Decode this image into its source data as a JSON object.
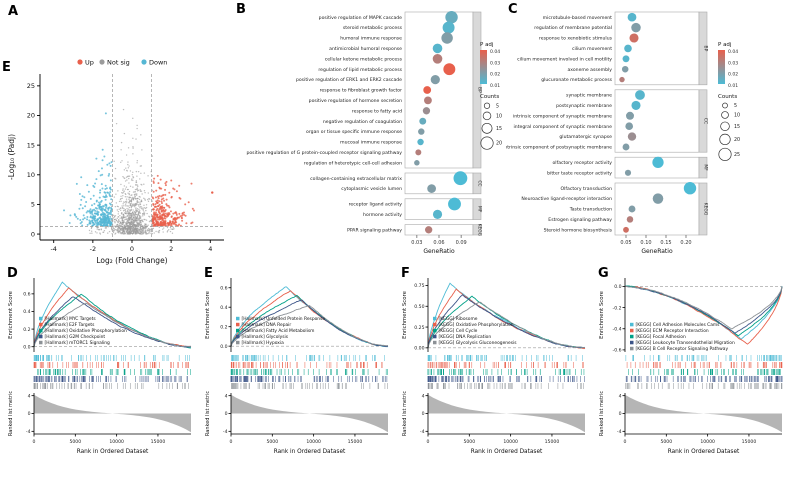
{
  "panel_labels": {
    "a": "A",
    "e_top": "E",
    "b": "B",
    "c": "C",
    "d": "D",
    "e": "E",
    "f": "F",
    "g": "G"
  },
  "palette": {
    "up": "#E8604C",
    "down": "#55B7D4",
    "notsig": "#9B9B9B",
    "padj_high": "#E8604C",
    "padj_low": "#4DBBD5",
    "rank_fill": "#b5b5b5",
    "gsea": [
      "#4DBBD5",
      "#E8604C",
      "#00A087",
      "#3C5488",
      "#8C9196"
    ]
  },
  "chart_data": [
    {
      "id": "volcano",
      "type": "scatter",
      "xlabel": "Log₂ (Fold Change)",
      "ylabel": "-Log₁₀ (Padj)",
      "xticks": [
        -4,
        -2,
        0,
        2,
        4
      ],
      "yticks": [
        0,
        5,
        10,
        15,
        20,
        25
      ],
      "xlim": [
        -4.7,
        4.7
      ],
      "ylim": [
        -1,
        27
      ],
      "threshold_x": [
        -1,
        1
      ],
      "threshold_y": 1.3,
      "legend": [
        {
          "label": "Up",
          "color": "#E8604C"
        },
        {
          "label": "Not sig",
          "color": "#9B9B9B"
        },
        {
          "label": "Down",
          "color": "#55B7D4"
        }
      ]
    },
    {
      "id": "dot-b",
      "type": "dotplot",
      "xlabel": "GeneRatio",
      "xticks": [
        0.03,
        0.06,
        0.09
      ],
      "xlim": [
        0.018,
        0.102
      ],
      "legend": {
        "padj_title": "P adj",
        "padj_ticks": [
          0.04,
          0.03,
          0.02,
          0.01
        ],
        "counts_title": "Counts",
        "counts": [
          5,
          10,
          15,
          20
        ]
      },
      "groups": [
        {
          "name": "BP",
          "terms": [
            {
              "term": "positive regulation of MAPK cascade",
              "ratio": 0.077,
              "count": 20,
              "padj": 0.015
            },
            {
              "term": "steroid metabolic process",
              "ratio": 0.073,
              "count": 19,
              "padj": 0.012
            },
            {
              "term": "humoral immune response",
              "ratio": 0.071,
              "count": 18,
              "padj": 0.02
            },
            {
              "term": "antimicrobial humoral response",
              "ratio": 0.058,
              "count": 14,
              "padj": 0.012
            },
            {
              "term": "cellular ketone metabolic process",
              "ratio": 0.058,
              "count": 14,
              "padj": 0.03
            },
            {
              "term": "regulation of lipid metabolic process",
              "ratio": 0.074,
              "count": 19,
              "padj": 0.04
            },
            {
              "term": "positive regulation of ERK1 and ERK2 cascade",
              "ratio": 0.055,
              "count": 13,
              "padj": 0.02
            },
            {
              "term": "response to fibroblast growth factor",
              "ratio": 0.044,
              "count": 10,
              "padj": 0.04
            },
            {
              "term": "positive regulation of hormone secretion",
              "ratio": 0.045,
              "count": 10,
              "padj": 0.03
            },
            {
              "term": "response to fatty acid",
              "ratio": 0.043,
              "count": 9,
              "padj": 0.025
            },
            {
              "term": "negative regulation of coagulation",
              "ratio": 0.038,
              "count": 8,
              "padj": 0.015
            },
            {
              "term": "organ or tissue specific immune response",
              "ratio": 0.036,
              "count": 7,
              "padj": 0.02
            },
            {
              "term": "mucosal immune response",
              "ratio": 0.035,
              "count": 7,
              "padj": 0.012
            },
            {
              "term": "positive regulation of G protein-coupled receptor signaling pathway",
              "ratio": 0.032,
              "count": 6,
              "padj": 0.03
            },
            {
              "term": "regulation of heterotypic cell-cell adhesion",
              "ratio": 0.03,
              "count": 5,
              "padj": 0.02
            }
          ]
        },
        {
          "name": "CC",
          "terms": [
            {
              "term": "collagen-containing extracellular matrix",
              "ratio": 0.089,
              "count": 23,
              "padj": 0.01
            },
            {
              "term": "cytoplasmic vesicle lumen",
              "ratio": 0.05,
              "count": 12,
              "padj": 0.02
            }
          ]
        },
        {
          "name": "MF",
          "terms": [
            {
              "term": "receptor ligand activity",
              "ratio": 0.081,
              "count": 21,
              "padj": 0.01
            },
            {
              "term": "hormone activity",
              "ratio": 0.058,
              "count": 13,
              "padj": 0.012
            }
          ]
        },
        {
          "name": "KEGG",
          "terms": [
            {
              "term": "PPAR signaling pathway",
              "ratio": 0.046,
              "count": 9,
              "padj": 0.03
            }
          ]
        }
      ]
    },
    {
      "id": "dot-c",
      "type": "dotplot",
      "xlabel": "GeneRatio",
      "xticks": [
        0.05,
        0.1,
        0.15,
        0.2
      ],
      "xlim": [
        0.03,
        0.225
      ],
      "legend": {
        "padj_title": "P adj",
        "padj_ticks": [
          0.04,
          0.03,
          0.02,
          0.01
        ],
        "counts_title": "Counts",
        "counts": [
          5,
          10,
          15,
          20,
          25
        ]
      },
      "groups": [
        {
          "name": "BP",
          "terms": [
            {
              "term": "microtubule-based movement",
              "ratio": 0.065,
              "count": 15,
              "padj": 0.012
            },
            {
              "term": "regulation of membrane potential",
              "ratio": 0.075,
              "count": 17,
              "padj": 0.02
            },
            {
              "term": "response to xenobiotic stimulus",
              "ratio": 0.07,
              "count": 16,
              "padj": 0.035
            },
            {
              "term": "cilium movement",
              "ratio": 0.055,
              "count": 12,
              "padj": 0.012
            },
            {
              "term": "cilium movement involved in cell motility",
              "ratio": 0.05,
              "count": 10,
              "padj": 0.012
            },
            {
              "term": "axoneme assembly",
              "ratio": 0.048,
              "count": 9,
              "padj": 0.02
            },
            {
              "term": "glucuronate metabolic process",
              "ratio": 0.04,
              "count": 6,
              "padj": 0.03
            }
          ]
        },
        {
          "name": "CC",
          "terms": [
            {
              "term": "synaptic membrane",
              "ratio": 0.085,
              "count": 18,
              "padj": 0.012
            },
            {
              "term": "postsynaptic membrane",
              "ratio": 0.075,
              "count": 16,
              "padj": 0.012
            },
            {
              "term": "intrinsic component of synaptic membrane",
              "ratio": 0.06,
              "count": 13,
              "padj": 0.02
            },
            {
              "term": "integral component of synaptic membrane",
              "ratio": 0.058,
              "count": 12,
              "padj": 0.02
            },
            {
              "term": "glutamatergic synapse",
              "ratio": 0.065,
              "count": 14,
              "padj": 0.025
            },
            {
              "term": "intrinsic component of postsynaptic membrane",
              "ratio": 0.05,
              "count": 10,
              "padj": 0.02
            }
          ]
        },
        {
          "name": "MF",
          "terms": [
            {
              "term": "olfactory receptor activity",
              "ratio": 0.13,
              "count": 22,
              "padj": 0.01
            },
            {
              "term": "bitter taste receptor activity",
              "ratio": 0.055,
              "count": 8,
              "padj": 0.02
            }
          ]
        },
        {
          "name": "KEGG",
          "terms": [
            {
              "term": "Olfactory transduction",
              "ratio": 0.21,
              "count": 25,
              "padj": 0.01
            },
            {
              "term": "Neuroactive ligand-receptor interaction",
              "ratio": 0.13,
              "count": 20,
              "padj": 0.02
            },
            {
              "term": "Taste transduction",
              "ratio": 0.065,
              "count": 10,
              "padj": 0.02
            },
            {
              "term": "Estrogen signaling pathway",
              "ratio": 0.06,
              "count": 9,
              "padj": 0.03
            },
            {
              "term": "Steroid hormone biosynthesis",
              "ratio": 0.05,
              "count": 7,
              "padj": 0.035
            }
          ]
        }
      ]
    },
    {
      "id": "gsea-d",
      "type": "line",
      "direction": "up",
      "ylabel": "Enrichment Score",
      "rank_ylabel": "Ranked list metric",
      "xlabel": "Rank in Ordered Dataset",
      "xticks": [
        0,
        5000,
        10000,
        15000
      ],
      "xmax": 19000,
      "es_ticks": [
        "0.0",
        "0.2",
        "0.4",
        "0.6"
      ],
      "es_lim": [
        -0.06,
        0.78
      ],
      "rank_ticks": [
        4,
        0,
        -4
      ],
      "rank_lim": [
        -4.6,
        4.6
      ],
      "series": [
        {
          "name": "[Hallmark] MYC Targets",
          "color": "#4DBBD5",
          "peak": 0.73,
          "peak_pos": 0.18
        },
        {
          "name": "[Hallmark] E2F Targets",
          "color": "#E8604C",
          "peak": 0.67,
          "peak_pos": 0.22
        },
        {
          "name": "[Hallmark] Oxidative Phosphorylation",
          "color": "#00A087",
          "peak": 0.6,
          "peak_pos": 0.3
        },
        {
          "name": "[Hallmark] G2M Checkpoint",
          "color": "#3C5488",
          "peak": 0.57,
          "peak_pos": 0.25
        },
        {
          "name": "[Hallmark] mTORC1 Signaling",
          "color": "#8C9196",
          "peak": 0.5,
          "peak_pos": 0.33
        }
      ]
    },
    {
      "id": "gsea-e",
      "type": "line",
      "direction": "up",
      "ylabel": "Enrichment Score",
      "rank_ylabel": "Ranked list metric",
      "xlabel": "Rank in Ordered Dataset",
      "xticks": [
        0,
        5000,
        10000,
        15000
      ],
      "xmax": 19000,
      "es_ticks": [
        "0.0",
        "0.2",
        "0.4",
        "0.6"
      ],
      "es_lim": [
        -0.06,
        0.7
      ],
      "rank_ticks": [
        4,
        0,
        -4
      ],
      "rank_lim": [
        -4.6,
        4.6
      ],
      "series": [
        {
          "name": "[Hallmark] Unfolded Protein Response",
          "color": "#4DBBD5",
          "peak": 0.62,
          "peak_pos": 0.35
        },
        {
          "name": "[Hallmark] DNA Repair",
          "color": "#E8604C",
          "peak": 0.57,
          "peak_pos": 0.38
        },
        {
          "name": "[Hallmark] Fatty Acid Metabolism",
          "color": "#00A087",
          "peak": 0.52,
          "peak_pos": 0.42
        },
        {
          "name": "[Hallmark] Glycolysis",
          "color": "#3C5488",
          "peak": 0.47,
          "peak_pos": 0.45
        },
        {
          "name": "[Hallmark] Hypoxia",
          "color": "#8C9196",
          "peak": 0.42,
          "peak_pos": 0.5
        }
      ]
    },
    {
      "id": "gsea-f",
      "type": "line",
      "direction": "up",
      "ylabel": "Enrichment Score",
      "rank_ylabel": "Ranked list metric",
      "xlabel": "Rank in Ordered Dataset",
      "xticks": [
        0,
        5000,
        10000,
        15000
      ],
      "xmax": 19000,
      "es_ticks": [
        "0.00",
        "0.25",
        "0.50",
        "0.75"
      ],
      "es_lim": [
        -0.05,
        0.84
      ],
      "rank_ticks": [
        4,
        0,
        -4
      ],
      "rank_lim": [
        -4.6,
        4.6
      ],
      "series": [
        {
          "name": "[KEGG] Ribosome",
          "color": "#4DBBD5",
          "peak": 0.78,
          "peak_pos": 0.14
        },
        {
          "name": "[KEGG] Oxidative Phosphorylation",
          "color": "#E8604C",
          "peak": 0.7,
          "peak_pos": 0.18
        },
        {
          "name": "[KEGG] Cell Cycle",
          "color": "#00A087",
          "peak": 0.62,
          "peak_pos": 0.28
        },
        {
          "name": "[KEGG] DNA Replication",
          "color": "#3C5488",
          "peak": 0.64,
          "peak_pos": 0.22
        },
        {
          "name": "[KEGG] Glycolysis Gluconeogenesis",
          "color": "#8C9196",
          "peak": 0.55,
          "peak_pos": 0.33
        }
      ]
    },
    {
      "id": "gsea-g",
      "type": "line",
      "direction": "down",
      "ylabel": "Enrichment Score",
      "rank_ylabel": "Ranked list metric",
      "xlabel": "Rank in Ordered Dataset",
      "xticks": [
        0,
        5000,
        10000,
        15000
      ],
      "xmax": 19000,
      "es_ticks": [
        "0.0",
        "-0.2",
        "-0.4",
        "-0.6"
      ],
      "es_lim": [
        -0.62,
        0.08
      ],
      "rank_ticks": [
        4,
        0,
        -4
      ],
      "rank_lim": [
        -4.6,
        4.6
      ],
      "series": [
        {
          "name": "[KEGG] Cell Adhesion Molecules Cams",
          "color": "#4DBBD5",
          "peak": -0.5,
          "peak_pos": 0.74
        },
        {
          "name": "[KEGG] ECM Receptor Interaction",
          "color": "#E8604C",
          "peak": -0.55,
          "peak_pos": 0.78
        },
        {
          "name": "[KEGG] Focal Adhesion",
          "color": "#00A087",
          "peak": -0.47,
          "peak_pos": 0.72
        },
        {
          "name": "[KEGG] Leukocyte Transendothelial Migration",
          "color": "#3C5488",
          "peak": -0.44,
          "peak_pos": 0.7
        },
        {
          "name": "[KEGG] B Cell Receptor Signaling Pathway",
          "color": "#8C9196",
          "peak": -0.4,
          "peak_pos": 0.68
        }
      ]
    }
  ]
}
